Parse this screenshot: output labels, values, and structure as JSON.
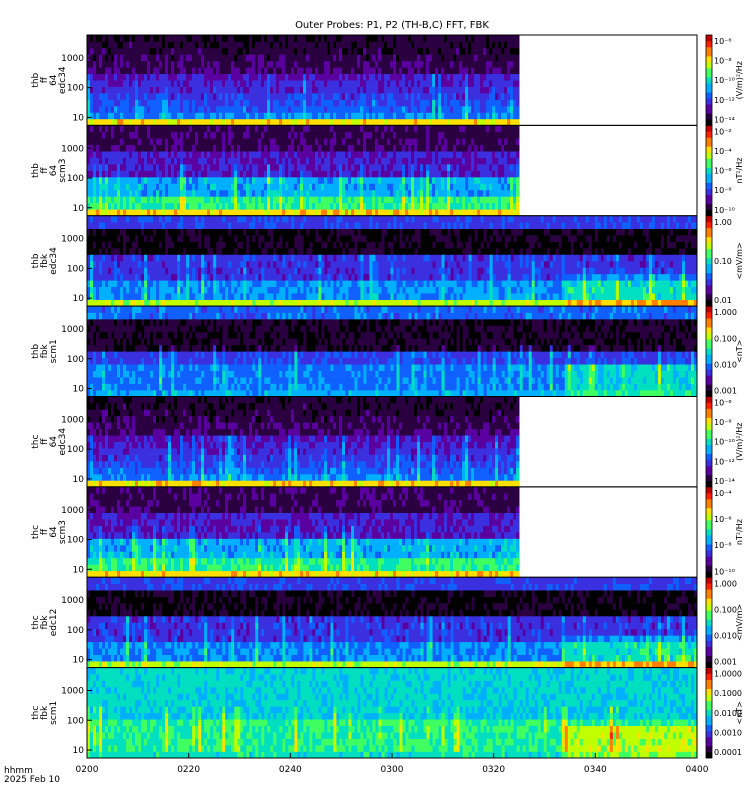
{
  "title": "Outer Probes: P1, P2 (TH-B,C) FFT, FBK",
  "footer": {
    "label": "hhmm",
    "date": "2025 Feb 10"
  },
  "colors": {
    "bg": "#ffffff",
    "axis": "#000000",
    "colorscale": [
      "#000000",
      "#2a0040",
      "#5a00a0",
      "#3a30e0",
      "#1060ff",
      "#00b0ff",
      "#00e0c0",
      "#40ff60",
      "#c0ff00",
      "#ffe000",
      "#ff8000",
      "#ff2000",
      "#c00000"
    ]
  },
  "chart_data": {
    "type": "heatmap",
    "title": "Outer Probes: P1, P2 (TH-B,C) FFT, FBK",
    "xlabel": "hhmm",
    "x_range": [
      "0200",
      "0400"
    ],
    "x_ticks": [
      "0200",
      "0220",
      "0240",
      "0300",
      "0320",
      "0340",
      "0400"
    ],
    "panels": [
      {
        "ylabel": [
          "thb",
          "ff",
          "64",
          "edc34"
        ],
        "yticks": [
          "10",
          "100",
          "1000"
        ],
        "cbar_label": "(V/m)²/Hz",
        "cbar_ticks": [
          "10⁻⁶",
          "10⁻⁸",
          "10⁻¹⁰",
          "10⁻¹²",
          "10⁻¹⁴"
        ],
        "data_end": "0325",
        "kind": "fft"
      },
      {
        "ylabel": [
          "thb",
          "ff",
          "64",
          "scm3"
        ],
        "yticks": [
          "10",
          "100",
          "1000"
        ],
        "cbar_label": "nT²/Hz",
        "cbar_ticks": [
          "10⁻²",
          "10⁻⁴",
          "10⁻⁶",
          "10⁻⁸",
          "10⁻¹⁰"
        ],
        "data_end": "0325",
        "kind": "fftscm"
      },
      {
        "ylabel": [
          "thb",
          "fbk",
          "edc34"
        ],
        "yticks": [
          "10",
          "100",
          "1000"
        ],
        "cbar_label": "<mV/m>",
        "cbar_ticks": [
          "1.00",
          "0.10",
          "0.01"
        ],
        "data_end": "0400",
        "kind": "fbk"
      },
      {
        "ylabel": [
          "thb",
          "fbk",
          "scm1"
        ],
        "yticks": [
          "10",
          "100",
          "1000"
        ],
        "cbar_label": "<nT>",
        "cbar_ticks": [
          "1.000",
          "0.100",
          "0.010",
          "0.001"
        ],
        "data_end": "0400",
        "kind": "fbkscm"
      },
      {
        "ylabel": [
          "thc",
          "ff",
          "64",
          "edc34"
        ],
        "yticks": [
          "10",
          "100",
          "1000"
        ],
        "cbar_label": "(V/m)²/Hz",
        "cbar_ticks": [
          "10⁻⁶",
          "10⁻⁸",
          "10⁻¹⁰",
          "10⁻¹²",
          "10⁻¹⁴"
        ],
        "data_end": "0325",
        "kind": "fft"
      },
      {
        "ylabel": [
          "thc",
          "ff",
          "64",
          "scm3"
        ],
        "yticks": [
          "10",
          "100",
          "1000"
        ],
        "cbar_label": "nT²/Hz",
        "cbar_ticks": [
          "10⁻⁴",
          "10⁻⁶",
          "10⁻⁸",
          "10⁻¹⁰"
        ],
        "data_end": "0325",
        "kind": "fftscm"
      },
      {
        "ylabel": [
          "thc",
          "fbk",
          "edc12"
        ],
        "yticks": [
          "10",
          "100",
          "1000"
        ],
        "cbar_label": "<mV/m>",
        "cbar_ticks": [
          "1.000",
          "0.100",
          "0.010",
          "0.001"
        ],
        "data_end": "0400",
        "kind": "fbk"
      },
      {
        "ylabel": [
          "thc",
          "fbk",
          "scm1"
        ],
        "yticks": [
          "10",
          "100",
          "1000"
        ],
        "cbar_label": "<nT>",
        "cbar_ticks": [
          "1.0000",
          "0.1000",
          "0.0100",
          "0.0010",
          "0.0001"
        ],
        "data_end": "0400",
        "kind": "fbkscm2"
      }
    ]
  }
}
